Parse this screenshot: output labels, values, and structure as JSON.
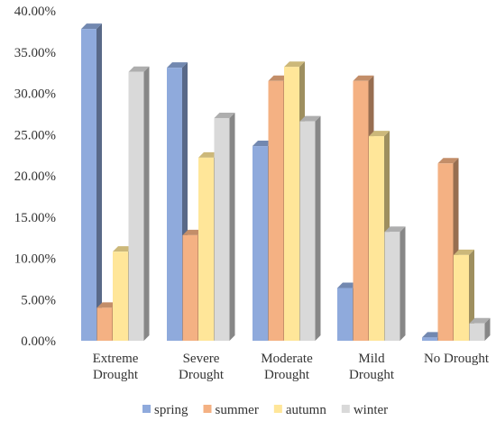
{
  "chart_data": {
    "type": "bar",
    "categories": [
      [
        "Extreme",
        "Drought"
      ],
      [
        "Severe",
        "Drought"
      ],
      [
        "Moderate",
        "Drought"
      ],
      [
        "Mild",
        "Drought"
      ],
      [
        "No Drought"
      ]
    ],
    "series": [
      {
        "name": "spring",
        "color": "#8faadc",
        "values": [
          37.8,
          33.1,
          23.6,
          6.4,
          0.4
        ]
      },
      {
        "name": "summer",
        "color": "#f4b183",
        "values": [
          4.0,
          12.8,
          31.5,
          31.5,
          21.5
        ]
      },
      {
        "name": "autumn",
        "color": "#ffe699",
        "values": [
          10.8,
          22.2,
          33.2,
          24.8,
          10.4
        ]
      },
      {
        "name": "winter",
        "color": "#d9d9d9",
        "values": [
          32.6,
          27.0,
          26.6,
          13.2,
          2.1
        ]
      }
    ],
    "y_ticks": [
      "0.00%",
      "5.00%",
      "10.00%",
      "15.00%",
      "20.00%",
      "25.00%",
      "30.00%",
      "35.00%",
      "40.00%"
    ],
    "ylim": [
      0,
      40
    ],
    "legend_position": "bottom",
    "grid": false,
    "style": "3d-clustered-column"
  }
}
